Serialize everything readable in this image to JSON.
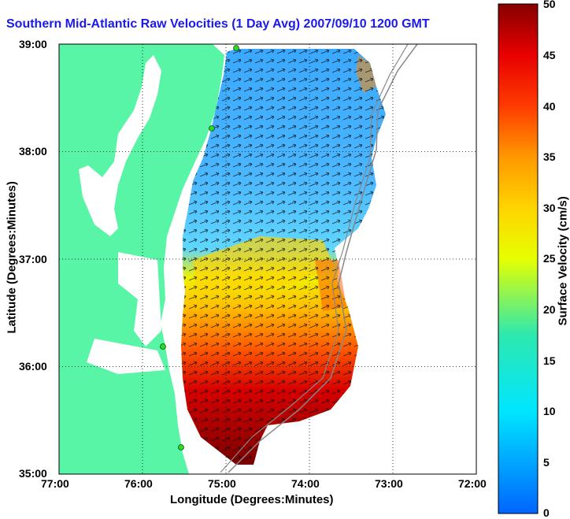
{
  "title": "Southern Mid-Atlantic Raw Velocities (1 Day Avg) 2007/09/10 1200 GMT",
  "x_axis": {
    "label": "Longitude (Degrees:Minutes)",
    "ticks": [
      "77:00",
      "76:00",
      "75:00",
      "74:00",
      "73:00",
      "72:00"
    ]
  },
  "y_axis": {
    "label": "Latitude (Degrees:Minutes)",
    "ticks": [
      "39:00",
      "38:00",
      "37:00",
      "36:00",
      "35:00"
    ]
  },
  "colorbar": {
    "label": "Surface Velocity (cm/s)",
    "ticks": [
      "50",
      "45",
      "40",
      "35",
      "30",
      "25",
      "20",
      "15",
      "10",
      "5",
      "0"
    ],
    "min": 0,
    "max": 50
  },
  "colors": {
    "land": "#57f5a5",
    "title": "#1a1aee",
    "station": "#22dd22"
  }
}
